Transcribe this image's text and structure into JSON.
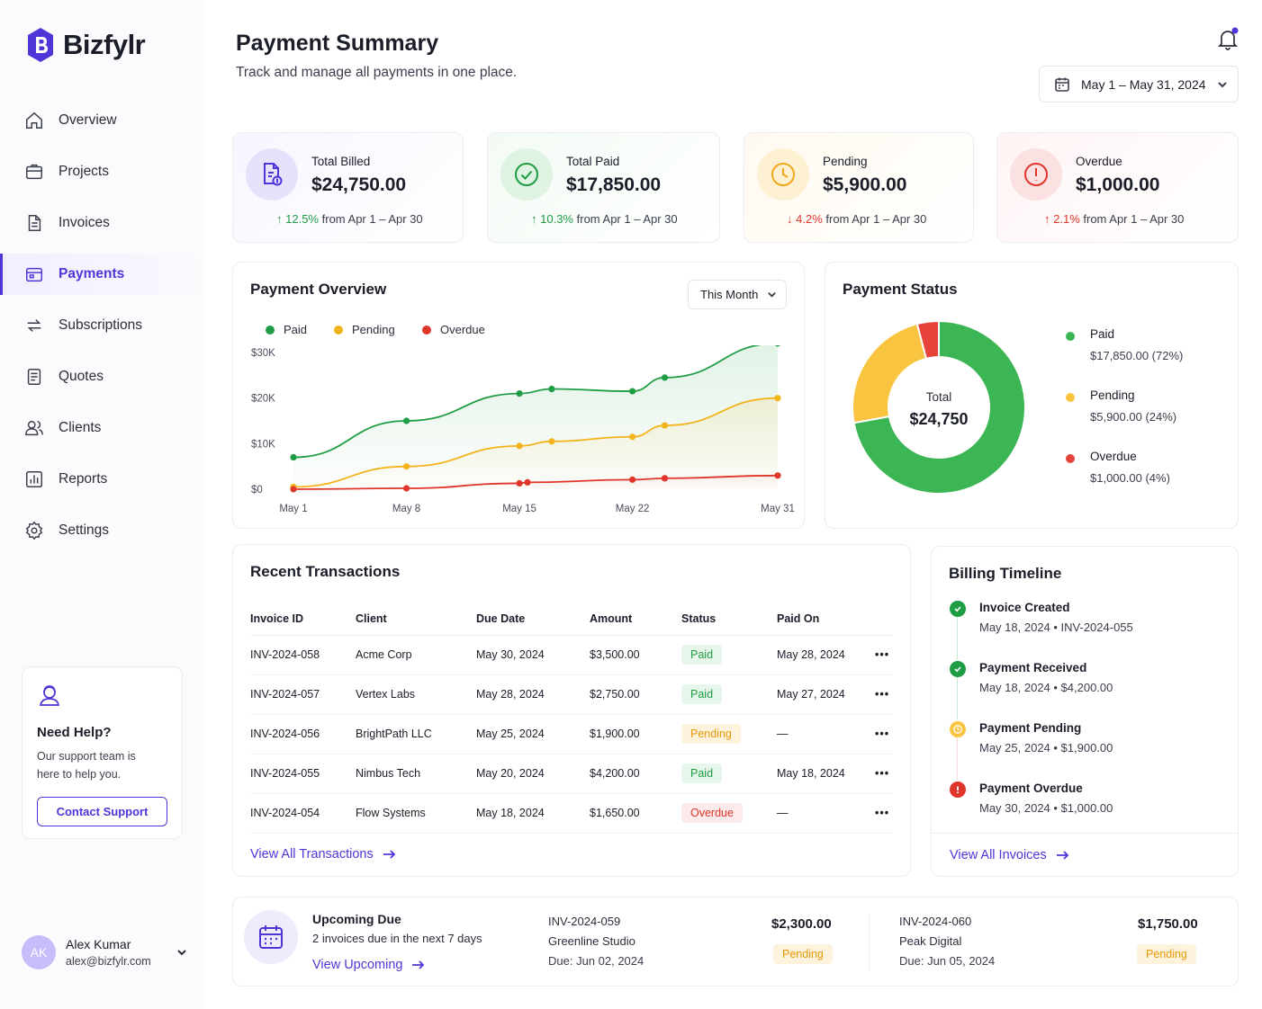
{
  "brand": {
    "name": "Bizfylr",
    "accent": "#4f35d8"
  },
  "sidebar": {
    "items": [
      {
        "label": "Overview",
        "icon": "home-icon"
      },
      {
        "label": "Projects",
        "icon": "briefcase-icon"
      },
      {
        "label": "Invoices",
        "icon": "document-icon"
      },
      {
        "label": "Payments",
        "icon": "wallet-icon",
        "active": true
      },
      {
        "label": "Subscriptions",
        "icon": "refresh-icon"
      },
      {
        "label": "Quotes",
        "icon": "quote-document-icon"
      },
      {
        "label": "Clients",
        "icon": "users-icon"
      },
      {
        "label": "Reports",
        "icon": "bar-chart-icon"
      },
      {
        "label": "Settings",
        "icon": "gear-icon"
      }
    ],
    "help": {
      "title": "Need Help?",
      "text": "Our support team is here to help you.",
      "button": "Contact Support"
    },
    "user": {
      "initials": "AK",
      "name": "Alex Kumar",
      "email": "alex@bizfylr.com"
    }
  },
  "header": {
    "title": "Payment Summary",
    "subtitle": "Track and manage all payments in one place.",
    "date_range": "May 1 – May 31, 2024"
  },
  "stats": [
    {
      "label": "Total Billed",
      "value": "$24,750.00",
      "change": "12.5%",
      "direction": "up",
      "period": "from Apr 1 – Apr 30",
      "color": "#4f35d8"
    },
    {
      "label": "Total Paid",
      "value": "$17,850.00",
      "change": "10.3%",
      "direction": "up",
      "period": "from Apr 1 – Apr 30",
      "color": "#1f9d44"
    },
    {
      "label": "Pending",
      "value": "$5,900.00",
      "change": "4.2%",
      "direction": "down",
      "period": "from Apr 1 – Apr 30",
      "color": "#f3a81c"
    },
    {
      "label": "Overdue",
      "value": "$1,000.00",
      "change": "2.1%",
      "direction": "up",
      "period": "from Apr 1 – Apr 30",
      "color": "#e0352b"
    }
  ],
  "overview": {
    "title": "Payment Overview",
    "filter": "This Month",
    "legend": [
      "Paid",
      "Pending",
      "Overdue"
    ]
  },
  "chart_data": [
    {
      "type": "area",
      "title": "Payment Overview",
      "x_labels": [
        "May 1",
        "May 8",
        "May 15",
        "May 22",
        "May 31"
      ],
      "y_ticks": [
        "$0",
        "$10K",
        "$20K",
        "$30K"
      ],
      "ylim": [
        0,
        30000
      ],
      "x_domain": [
        1,
        31
      ],
      "grid": false,
      "legend_position": "top-left",
      "series": [
        {
          "name": "Paid",
          "color": "#1f9d44",
          "x": [
            1,
            8,
            15,
            17,
            22,
            24,
            31
          ],
          "values": [
            7000,
            15000,
            21000,
            22000,
            21500,
            24500,
            32000
          ]
        },
        {
          "name": "Pending",
          "color": "#f3b31c",
          "x": [
            1,
            8,
            15,
            17,
            22,
            24,
            31
          ],
          "values": [
            500,
            5000,
            9500,
            10500,
            11500,
            14000,
            20000
          ]
        },
        {
          "name": "Overdue",
          "color": "#e0352b",
          "x": [
            1,
            8,
            15,
            15.5,
            22,
            24,
            31
          ],
          "values": [
            0,
            200,
            1300,
            1500,
            2100,
            2400,
            3000
          ]
        }
      ]
    },
    {
      "type": "pie",
      "title": "Payment Status",
      "center_label": "Total",
      "center_value": "$24,750",
      "slices": [
        {
          "name": "Paid",
          "value": 17850,
          "label": "$17,850.00 (72%)",
          "color": "#3cb554"
        },
        {
          "name": "Pending",
          "value": 5900,
          "label": "$5,900.00 (24%)",
          "color": "#f9c440"
        },
        {
          "name": "Overdue",
          "value": 1000,
          "label": "$1,000.00 (4%)",
          "color": "#e6433b"
        }
      ]
    }
  ],
  "transactions": {
    "title": "Recent Transactions",
    "columns": [
      "Invoice ID",
      "Client",
      "Due Date",
      "Amount",
      "Status",
      "Paid On"
    ],
    "rows": [
      {
        "id": "INV-2024-058",
        "client": "Acme Corp",
        "due": "May 30, 2024",
        "amount": "$3,500.00",
        "status": "Paid",
        "paid_on": "May 28, 2024"
      },
      {
        "id": "INV-2024-057",
        "client": "Vertex Labs",
        "due": "May 28, 2024",
        "amount": "$2,750.00",
        "status": "Paid",
        "paid_on": "May 27, 2024"
      },
      {
        "id": "INV-2024-056",
        "client": "BrightPath LLC",
        "due": "May 25, 2024",
        "amount": "$1,900.00",
        "status": "Pending",
        "paid_on": "—"
      },
      {
        "id": "INV-2024-055",
        "client": "Nimbus Tech",
        "due": "May 20, 2024",
        "amount": "$4,200.00",
        "status": "Paid",
        "paid_on": "May 18, 2024"
      },
      {
        "id": "INV-2024-054",
        "client": "Flow Systems",
        "due": "May 18, 2024",
        "amount": "$1,650.00",
        "status": "Overdue",
        "paid_on": "—"
      }
    ],
    "more": "•••",
    "view_all": "View All Transactions"
  },
  "timeline": {
    "title": "Billing Timeline",
    "items": [
      {
        "title": "Invoice Created",
        "sub": "May 18, 2024  •  INV-2024-055",
        "kind": "check"
      },
      {
        "title": "Payment Received",
        "sub": "May 18, 2024  •  $4,200.00",
        "kind": "check"
      },
      {
        "title": "Payment Pending",
        "sub": "May 25, 2024  •  $1,900.00",
        "kind": "clock"
      },
      {
        "title": "Payment Overdue",
        "sub": "May 30, 2024  •  $1,000.00",
        "kind": "alert"
      }
    ],
    "view_all": "View All Invoices"
  },
  "upcoming": {
    "title": "Upcoming Due",
    "sub": "2 invoices due in the next 7 days",
    "link": "View Upcoming",
    "items": [
      {
        "id": "INV-2024-059",
        "client": "Greenline Studio",
        "due": "Due: Jun 02, 2024",
        "amount": "$2,300.00",
        "status": "Pending"
      },
      {
        "id": "INV-2024-060",
        "client": "Peak Digital",
        "due": "Due: Jun 05, 2024",
        "amount": "$1,750.00",
        "status": "Pending"
      }
    ]
  }
}
